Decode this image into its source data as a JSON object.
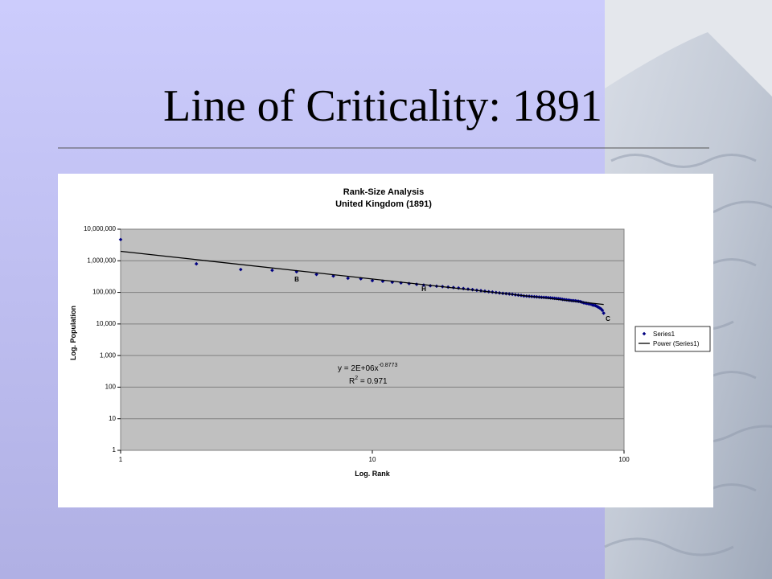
{
  "slide": {
    "title": "Line of Criticality: 1891"
  },
  "chart_data": {
    "type": "scatter",
    "title": "Rank-Size Analysis",
    "subtitle": "United Kingdom (1891)",
    "x_label": "Log. Rank",
    "y_label": "Log. Population",
    "xlog": true,
    "ylog": true,
    "xlim": [
      1,
      100
    ],
    "xticks": [
      1,
      10,
      100
    ],
    "ylim": [
      1,
      10000000
    ],
    "yticks": [
      {
        "value": 10000000,
        "label": "10,000,000"
      },
      {
        "value": 1000000,
        "label": "1,000,000"
      },
      {
        "value": 100000,
        "label": "100,000"
      },
      {
        "value": 10000,
        "label": "10,000"
      },
      {
        "value": 1000,
        "label": "1,000"
      },
      100,
      10,
      1
    ],
    "grid": "y",
    "legend": "right",
    "series": [
      {
        "name": "Series1",
        "color": "#000080",
        "style": "markers",
        "x": [
          1,
          2,
          3,
          4,
          5,
          6,
          7,
          8,
          9,
          10,
          11,
          12,
          13,
          14,
          15,
          16,
          17,
          18,
          19,
          20,
          21,
          22,
          23,
          24,
          25,
          26,
          27,
          28,
          29,
          30,
          31,
          32,
          33,
          34,
          35,
          36,
          37,
          38,
          39,
          40,
          41,
          42,
          43,
          44,
          45,
          46,
          47,
          48,
          49,
          50,
          51,
          52,
          53,
          54,
          55,
          56,
          57,
          58,
          59,
          60,
          61,
          62,
          63,
          64,
          65,
          66,
          67,
          68,
          69,
          70,
          71,
          72,
          73,
          74,
          75,
          76,
          77,
          78,
          79,
          80,
          81,
          82,
          83
        ],
        "values": [
          4700000,
          800000,
          530000,
          500000,
          450000,
          370000,
          330000,
          280000,
          270000,
          235000,
          225000,
          210000,
          200000,
          190000,
          180000,
          170000,
          162000,
          157000,
          152000,
          147000,
          142000,
          137000,
          132000,
          127000,
          122000,
          117000,
          113000,
          109000,
          105000,
          102000,
          99000,
          96000,
          93000,
          91000,
          89000,
          87000,
          84000,
          82000,
          80000,
          77000,
          76000,
          75000,
          74000,
          73000,
          72000,
          71000,
          70000,
          69500,
          69000,
          68000,
          67000,
          66000,
          65000,
          64000,
          63000,
          62000,
          60000,
          59000,
          58000,
          57000,
          56000,
          55000,
          54500,
          54000,
          53000,
          52000,
          51000,
          49000,
          47000,
          46000,
          45000,
          44000,
          43000,
          42000,
          40000,
          39000,
          38000,
          36000,
          34000,
          32000,
          30000,
          27000,
          22000
        ]
      },
      {
        "name": "Power (Series1)",
        "color": "#000000",
        "style": "line",
        "x": [
          1,
          83
        ],
        "values": [
          2000000,
          41400
        ]
      }
    ],
    "annotations": [
      {
        "text": "B",
        "color": "#ff0000"
      },
      {
        "text": "H",
        "color": "#ffff66"
      },
      {
        "text": "C",
        "color": "#3333cc"
      }
    ],
    "equation": {
      "base": "y = 2E+06x",
      "exponent": "-0.8773"
    },
    "r_squared": {
      "base": "R",
      "exponent": "2",
      "rest": " = 0.971"
    }
  }
}
